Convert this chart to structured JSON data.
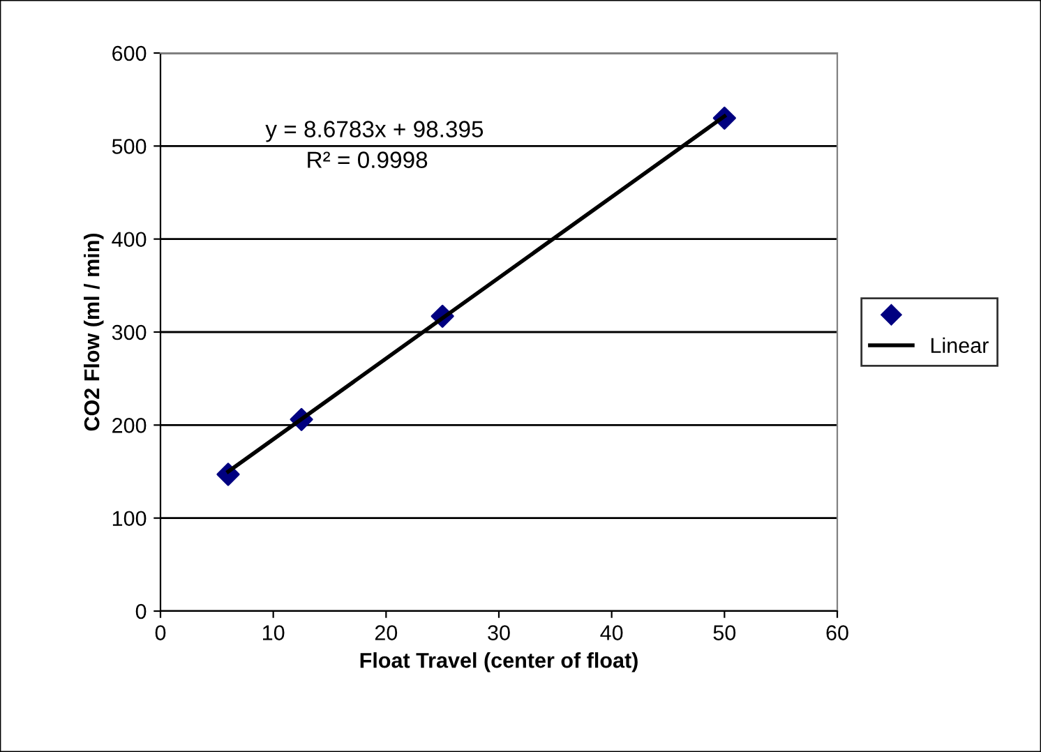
{
  "chart_data": {
    "type": "scatter",
    "xlabel": "Float Travel (center of float)",
    "ylabel": "CO2 Flow (ml / min)",
    "series": [
      {
        "color": "#000080",
        "marker": "diamond",
        "x": [
          6,
          12.5,
          25,
          50
        ],
        "values": [
          147,
          206,
          317,
          530
        ]
      },
      {
        "type": "line",
        "name": "Linear",
        "color": "#000000",
        "line_style": "solid",
        "marker": "none",
        "x": [
          6,
          50
        ],
        "values": [
          150,
          532
        ]
      }
    ],
    "annotations": [
      "y = 8.6783x + 98.395",
      "R² = 0.9998"
    ],
    "xlim": [
      0,
      60
    ],
    "xticks": [
      0,
      10,
      20,
      30,
      40,
      50,
      60
    ],
    "ylim": [
      0,
      600
    ],
    "yticks": [
      0,
      100,
      200,
      300,
      400,
      500,
      600
    ],
    "grid": "y",
    "legend": "right"
  }
}
